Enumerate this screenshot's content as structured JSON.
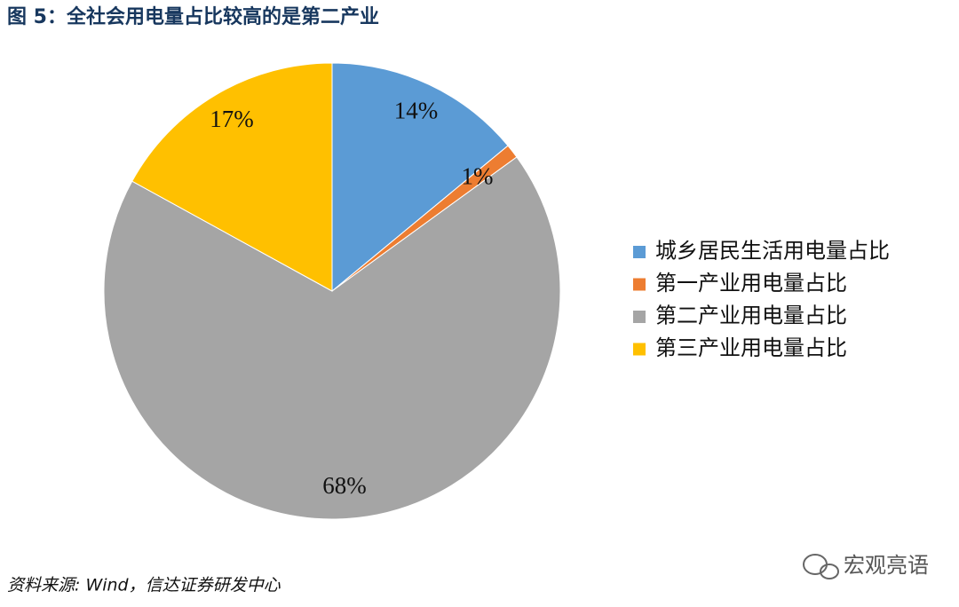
{
  "chart_data": {
    "type": "pie",
    "title": "图 5：全社会用电量占比较高的是第二产业",
    "categories": [
      "城乡居民生活用电量占比",
      "第一产业用电量占比",
      "第二产业用电量占比",
      "第三产业用电量占比"
    ],
    "values": [
      14,
      1,
      68,
      17
    ],
    "value_labels": [
      "14%",
      "1%",
      "68%",
      "17%"
    ],
    "colors": [
      "#5B9BD5",
      "#ED7D31",
      "#A5A5A5",
      "#FFC000"
    ],
    "legend": "right"
  },
  "source": "资料来源: Wind，信达证券研发中心",
  "watermark": "宏观亮语"
}
